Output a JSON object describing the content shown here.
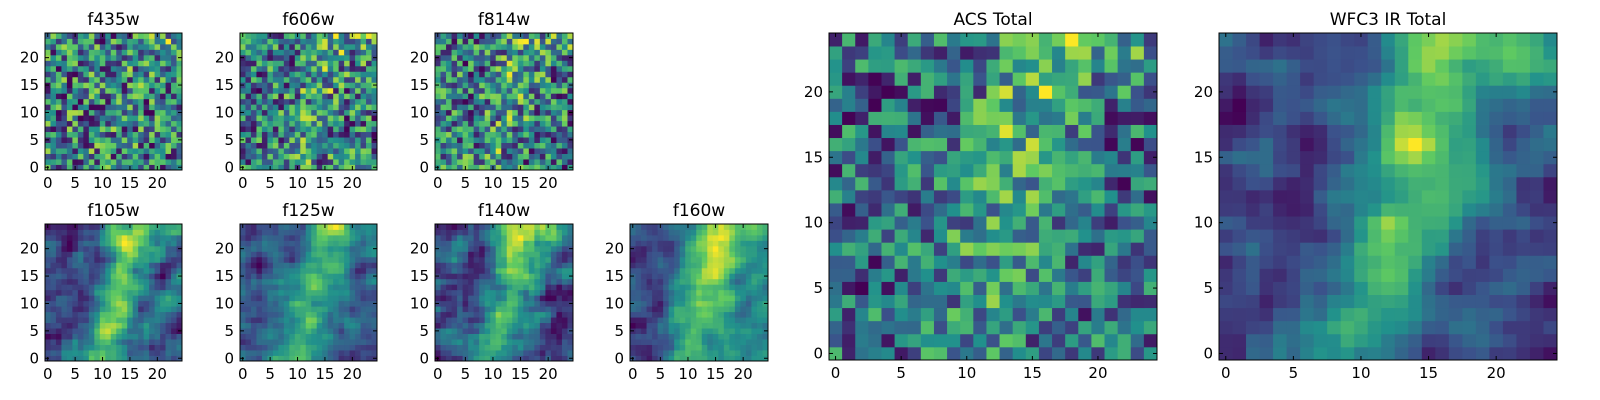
{
  "colormap": "viridis",
  "colormap_stops": [
    "#440154",
    "#3b528b",
    "#21918c",
    "#5ec962",
    "#fde725"
  ],
  "chart_data": [
    {
      "type": "heatmap",
      "title": "f435w",
      "xlim": [
        -0.5,
        24.5
      ],
      "ylim": [
        -0.5,
        24.5
      ],
      "xticks": [
        0,
        5,
        10,
        15,
        20
      ],
      "yticks": [
        0,
        5,
        10,
        15,
        20
      ],
      "grid_size": [
        25,
        25
      ],
      "structure": "noise",
      "seed": 11
    },
    {
      "type": "heatmap",
      "title": "f606w",
      "xlim": [
        -0.5,
        24.5
      ],
      "ylim": [
        -0.5,
        24.5
      ],
      "xticks": [
        0,
        5,
        10,
        15,
        20
      ],
      "yticks": [
        0,
        5,
        10,
        15,
        20
      ],
      "grid_size": [
        25,
        25
      ],
      "structure": "faint-ridge",
      "seed": 23
    },
    {
      "type": "heatmap",
      "title": "f814w",
      "xlim": [
        -0.5,
        24.5
      ],
      "ylim": [
        -0.5,
        24.5
      ],
      "xticks": [
        0,
        5,
        10,
        15,
        20
      ],
      "yticks": [
        0,
        5,
        10,
        15,
        20
      ],
      "grid_size": [
        25,
        25
      ],
      "structure": "faint-ridge",
      "seed": 37
    },
    {
      "type": "heatmap",
      "title": "ACS Total",
      "xlim": [
        -0.5,
        24.5
      ],
      "ylim": [
        -0.5,
        24.5
      ],
      "xticks": [
        0,
        5,
        10,
        15,
        20
      ],
      "yticks": [
        0,
        5,
        10,
        15,
        20
      ],
      "grid_size": [
        25,
        25
      ],
      "structure": "ridge",
      "seed": 41
    },
    {
      "type": "heatmap",
      "title": "WFC3 IR Total",
      "xlim": [
        -0.5,
        24.5
      ],
      "ylim": [
        -0.5,
        24.5
      ],
      "xticks": [
        0,
        5,
        10,
        15,
        20
      ],
      "yticks": [
        0,
        5,
        10,
        15,
        20
      ],
      "grid_size": [
        25,
        25
      ],
      "structure": "smooth-ridge",
      "seed": 53
    },
    {
      "type": "heatmap",
      "title": "f105w",
      "xlim": [
        -0.5,
        24.5
      ],
      "ylim": [
        -0.5,
        24.5
      ],
      "xticks": [
        0,
        5,
        10,
        15,
        20
      ],
      "yticks": [
        0,
        5,
        10,
        15,
        20
      ],
      "grid_size": [
        25,
        25
      ],
      "structure": "blob",
      "seed": 61
    },
    {
      "type": "heatmap",
      "title": "f125w",
      "xlim": [
        -0.5,
        24.5
      ],
      "ylim": [
        -0.5,
        24.5
      ],
      "xticks": [
        0,
        5,
        10,
        15,
        20
      ],
      "yticks": [
        0,
        5,
        10,
        15,
        20
      ],
      "grid_size": [
        25,
        25
      ],
      "structure": "blob",
      "seed": 73
    },
    {
      "type": "heatmap",
      "title": "f140w",
      "xlim": [
        -0.5,
        24.5
      ],
      "ylim": [
        -0.5,
        24.5
      ],
      "xticks": [
        0,
        5,
        10,
        15,
        20
      ],
      "yticks": [
        0,
        5,
        10,
        15,
        20
      ],
      "grid_size": [
        25,
        25
      ],
      "structure": "blob",
      "seed": 89
    },
    {
      "type": "heatmap",
      "title": "f160w",
      "xlim": [
        -0.5,
        24.5
      ],
      "ylim": [
        -0.5,
        24.5
      ],
      "xticks": [
        0,
        5,
        10,
        15,
        20
      ],
      "yticks": [
        0,
        5,
        10,
        15,
        20
      ],
      "grid_size": [
        25,
        25
      ],
      "structure": "blob-dark-left",
      "seed": 97
    }
  ]
}
